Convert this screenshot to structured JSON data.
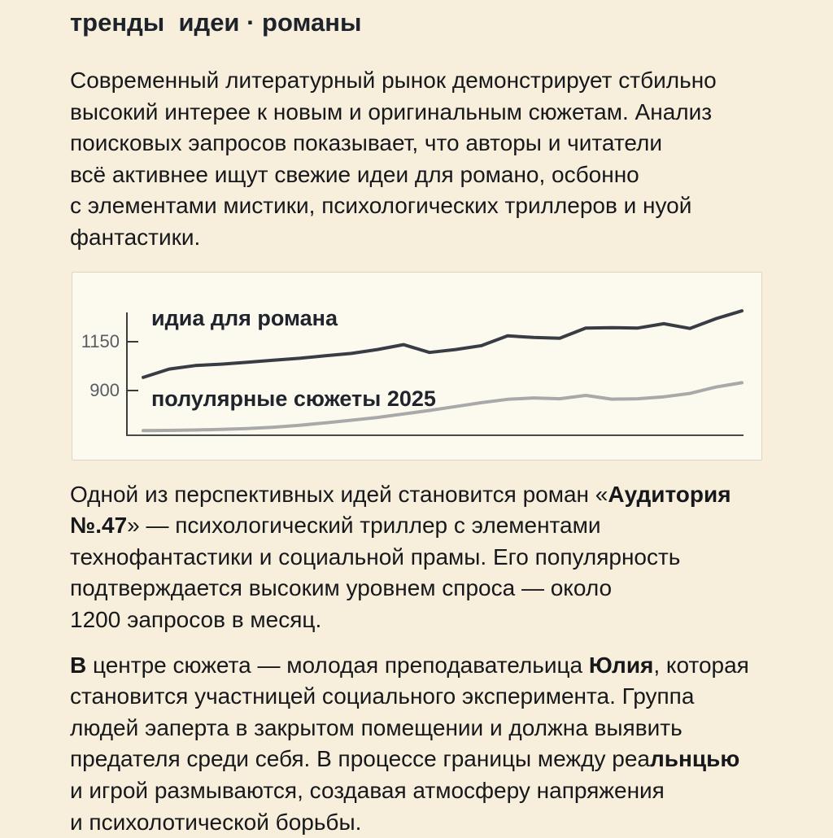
{
  "page": {
    "title": "тренды  идеи · романы"
  },
  "paragraphs": [
    {
      "lines": [
        [
          {
            "t": "Современный литературный рынок демонстрирует стбильно"
          }
        ],
        [
          {
            "t": "высокий интерее к новым и оригинальным сюжетам. Анализ"
          }
        ],
        [
          {
            "t": "поисковых эапросов показывает, что авторы и читатели"
          }
        ],
        [
          {
            "t": "всё активнее ищут свежие идеи для романо, осбонно"
          }
        ],
        [
          {
            "t": "с элементами мистики, психологических триллеров и нуой"
          }
        ],
        [
          {
            "t": "фантастики."
          }
        ]
      ]
    },
    {
      "lines": [
        [
          {
            "t": "Одной из перспективных идей становится роман «"
          },
          {
            "t": "Аудитория",
            "b": true
          }
        ],
        [
          {
            "t": "№.47",
            "b": true
          },
          {
            "t": "» — психологический триллер с элементами"
          }
        ],
        [
          {
            "t": "технофантастики и социальной прамы. Его популярность"
          }
        ],
        [
          {
            "t": "подтверждается высоким уровнем спроса — около"
          }
        ],
        [
          {
            "t": "1200 эапросов в месяц."
          }
        ]
      ]
    },
    {
      "lines": [
        [
          {
            "t": "В",
            "b": true
          },
          {
            "t": " центре сюжета — молодая преподавательица "
          },
          {
            "t": "Юлия",
            "b": true
          },
          {
            "t": ", которая"
          }
        ],
        [
          {
            "t": "становится участницей социального эксперимента. Группа"
          }
        ],
        [
          {
            "t": "людей эаперта в закрытом помещении и должна выявить"
          }
        ],
        [
          {
            "t": "предателя среди себя. В процессе границы между реа"
          },
          {
            "t": "льнцью",
            "b": true
          }
        ],
        [
          {
            "t": "и игрой размываются, создавая атмосферу напряжения"
          }
        ],
        [
          {
            "t": "и психолотической борьбы."
          }
        ]
      ]
    }
  ],
  "chart_data": {
    "type": "line",
    "x": [
      1,
      2,
      3,
      4,
      5,
      6,
      7,
      8,
      9,
      10,
      11,
      12,
      13,
      14,
      15,
      16,
      17,
      18,
      19,
      20,
      21,
      22,
      23,
      24
    ],
    "series": [
      {
        "name": "идиа для романа",
        "color": "#383d45",
        "values": [
          967,
          1010,
          1028,
          1035,
          1045,
          1055,
          1065,
          1078,
          1090,
          1110,
          1135,
          1095,
          1110,
          1130,
          1180,
          1172,
          1168,
          1220,
          1222,
          1220,
          1242,
          1218,
          1268,
          1308
        ]
      },
      {
        "name": "полулярные сюжеты 2025",
        "color": "#a9a9a9",
        "values": [
          695,
          696,
          698,
          701,
          705,
          712,
          722,
          734,
          748,
          762,
          780,
          798,
          818,
          838,
          855,
          862,
          858,
          875,
          856,
          858,
          868,
          885,
          918,
          940
        ]
      }
    ],
    "y_axis": {
      "ticks": [
        {
          "value": 1150,
          "label": "1150"
        },
        {
          "value": 900,
          "label": "900"
        }
      ]
    },
    "ylim": [
      671,
      1360
    ],
    "xlabel": "",
    "ylabel": "",
    "grid": false,
    "legend_position": "inside-left",
    "title": ""
  },
  "colors": {
    "page_background": "#f7efdb",
    "chart_background": "#fcf9ef",
    "text": "#17181c",
    "axis": "#3c3c3c",
    "series1": "#383d45",
    "series2": "#a9a9a9"
  }
}
